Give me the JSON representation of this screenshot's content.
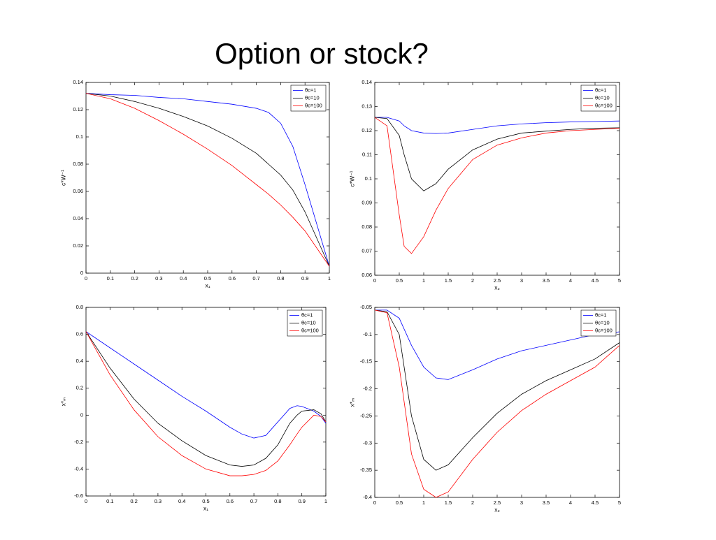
{
  "title": "Option or stock?",
  "chart_data": [
    {
      "type": "line",
      "xlabel": "x₁",
      "ylabel": "c*W⁻¹",
      "x": [
        0,
        0.1,
        0.2,
        0.3,
        0.4,
        0.5,
        0.6,
        0.7,
        0.75,
        0.8,
        0.85,
        0.9,
        0.95,
        1
      ],
      "series": [
        {
          "name": "θc=1",
          "color": "#0000ff",
          "values": [
            0.132,
            0.131,
            0.1305,
            0.129,
            0.128,
            0.126,
            0.124,
            0.121,
            0.118,
            0.11,
            0.093,
            0.065,
            0.035,
            0.005
          ]
        },
        {
          "name": "θc=10",
          "color": "#000000",
          "values": [
            0.132,
            0.13,
            0.126,
            0.121,
            0.115,
            0.108,
            0.099,
            0.088,
            0.08,
            0.072,
            0.061,
            0.045,
            0.025,
            0.005
          ]
        },
        {
          "name": "θc=100",
          "color": "#ff0000",
          "values": [
            0.132,
            0.128,
            0.121,
            0.112,
            0.102,
            0.091,
            0.079,
            0.065,
            0.058,
            0.05,
            0.041,
            0.031,
            0.018,
            0.005
          ]
        }
      ],
      "xlim": [
        0,
        1
      ],
      "xticks": [
        0,
        0.1,
        0.2,
        0.3,
        0.4,
        0.5,
        0.6,
        0.7,
        0.8,
        0.9,
        1
      ],
      "ylim": [
        0,
        0.14
      ],
      "yticks": [
        0,
        0.02,
        0.04,
        0.06,
        0.08,
        0.1,
        0.12,
        0.14
      ],
      "legend": "upper-right"
    },
    {
      "type": "line",
      "xlabel": "x₂",
      "ylabel": "c*W⁻¹",
      "x": [
        0,
        0.25,
        0.5,
        0.6,
        0.75,
        1,
        1.25,
        1.5,
        2,
        2.5,
        3,
        3.5,
        4,
        4.5,
        5
      ],
      "series": [
        {
          "name": "θc=1",
          "color": "#0000ff",
          "values": [
            0.1255,
            0.1255,
            0.124,
            0.122,
            0.12,
            0.119,
            0.1188,
            0.119,
            0.1205,
            0.122,
            0.1228,
            0.1233,
            0.1236,
            0.1238,
            0.124
          ]
        },
        {
          "name": "θc=10",
          "color": "#000000",
          "values": [
            0.1255,
            0.125,
            0.118,
            0.11,
            0.1,
            0.095,
            0.098,
            0.104,
            0.112,
            0.1165,
            0.119,
            0.1198,
            0.1205,
            0.121,
            0.1212
          ]
        },
        {
          "name": "θc=100",
          "color": "#ff0000",
          "values": [
            0.1255,
            0.122,
            0.085,
            0.072,
            0.069,
            0.076,
            0.087,
            0.096,
            0.108,
            0.114,
            0.117,
            0.119,
            0.12,
            0.1205,
            0.121
          ]
        }
      ],
      "xlim": [
        0,
        5
      ],
      "xticks": [
        0,
        0.5,
        1,
        1.5,
        2,
        2.5,
        3,
        3.5,
        4,
        4.5,
        5
      ],
      "ylim": [
        0.06,
        0.14
      ],
      "yticks": [
        0.06,
        0.07,
        0.08,
        0.09,
        0.1,
        0.11,
        0.12,
        0.13,
        0.14
      ],
      "legend": "upper-right"
    },
    {
      "type": "line",
      "xlabel": "x₁",
      "ylabel": "x*ₘ",
      "x": [
        0,
        0.1,
        0.2,
        0.3,
        0.4,
        0.5,
        0.6,
        0.65,
        0.7,
        0.75,
        0.8,
        0.85,
        0.88,
        0.9,
        0.95,
        0.98,
        1
      ],
      "series": [
        {
          "name": "θc=1",
          "color": "#0000ff",
          "values": [
            0.62,
            0.5,
            0.38,
            0.26,
            0.14,
            0.03,
            -0.09,
            -0.14,
            -0.17,
            -0.15,
            -0.05,
            0.05,
            0.07,
            0.065,
            0.03,
            -0.01,
            -0.06
          ]
        },
        {
          "name": "θc=10",
          "color": "#000000",
          "values": [
            0.62,
            0.35,
            0.12,
            -0.06,
            -0.19,
            -0.3,
            -0.37,
            -0.38,
            -0.37,
            -0.32,
            -0.22,
            -0.06,
            0.0,
            0.03,
            0.04,
            0.01,
            -0.05
          ]
        },
        {
          "name": "θc=100",
          "color": "#ff0000",
          "values": [
            0.62,
            0.3,
            0.04,
            -0.16,
            -0.3,
            -0.4,
            -0.45,
            -0.45,
            -0.44,
            -0.41,
            -0.34,
            -0.22,
            -0.14,
            -0.09,
            0.0,
            -0.01,
            -0.05
          ]
        }
      ],
      "xlim": [
        0,
        1
      ],
      "xticks": [
        0,
        0.1,
        0.2,
        0.3,
        0.4,
        0.5,
        0.6,
        0.7,
        0.8,
        0.9,
        1
      ],
      "ylim": [
        -0.6,
        0.8
      ],
      "yticks": [
        -0.6,
        -0.4,
        -0.2,
        0,
        0.2,
        0.4,
        0.6,
        0.8
      ],
      "legend": "upper-right"
    },
    {
      "type": "line",
      "xlabel": "x₂",
      "ylabel": "x*ₘ",
      "x": [
        0,
        0.25,
        0.5,
        0.75,
        1,
        1.25,
        1.5,
        2,
        2.5,
        3,
        3.5,
        4,
        4.5,
        5
      ],
      "series": [
        {
          "name": "θc=1",
          "color": "#0000ff",
          "values": [
            -0.055,
            -0.055,
            -0.07,
            -0.12,
            -0.16,
            -0.18,
            -0.183,
            -0.165,
            -0.145,
            -0.13,
            -0.12,
            -0.11,
            -0.1,
            -0.095
          ]
        },
        {
          "name": "θc=10",
          "color": "#000000",
          "values": [
            -0.055,
            -0.058,
            -0.1,
            -0.25,
            -0.33,
            -0.35,
            -0.34,
            -0.29,
            -0.245,
            -0.21,
            -0.185,
            -0.165,
            -0.145,
            -0.115
          ]
        },
        {
          "name": "θc=100",
          "color": "#ff0000",
          "values": [
            -0.055,
            -0.06,
            -0.16,
            -0.32,
            -0.385,
            -0.4,
            -0.39,
            -0.33,
            -0.28,
            -0.24,
            -0.21,
            -0.185,
            -0.16,
            -0.12
          ]
        }
      ],
      "xlim": [
        0,
        5
      ],
      "xticks": [
        0,
        0.5,
        1,
        1.5,
        2,
        2.5,
        3,
        3.5,
        4,
        4.5,
        5
      ],
      "ylim": [
        -0.4,
        -0.05
      ],
      "yticks": [
        -0.4,
        -0.35,
        -0.3,
        -0.25,
        -0.2,
        -0.15,
        -0.1,
        -0.05
      ],
      "legend": "upper-right"
    }
  ]
}
